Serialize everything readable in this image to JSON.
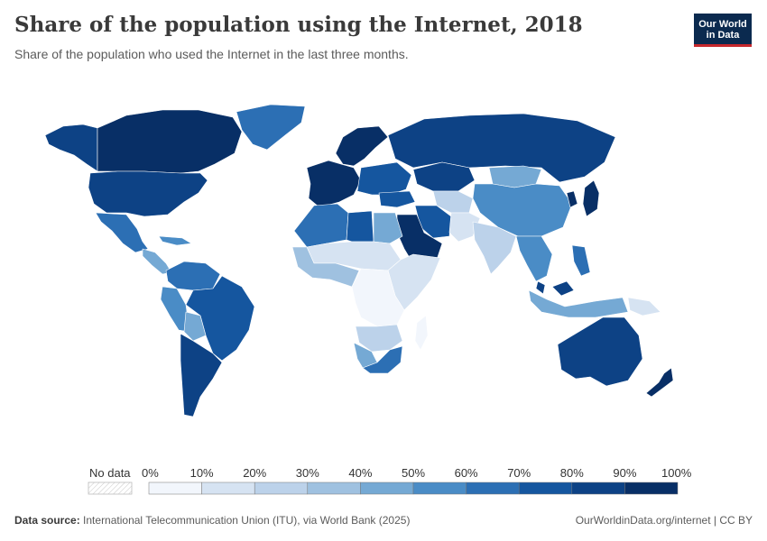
{
  "header": {
    "title": "Share of the population using the Internet, 2018",
    "subtitle": "Share of the population who used the Internet in the last three months.",
    "logo_line1": "Our World",
    "logo_line2": "in Data"
  },
  "legend": {
    "no_data_label": "No data",
    "ticks": [
      "0%",
      "10%",
      "20%",
      "30%",
      "40%",
      "50%",
      "60%",
      "70%",
      "80%",
      "90%",
      "100%"
    ],
    "bins": [
      {
        "range": "0-10",
        "color": "#f2f6fc"
      },
      {
        "range": "10-20",
        "color": "#d6e3f2"
      },
      {
        "range": "20-30",
        "color": "#bcd2ea"
      },
      {
        "range": "30-40",
        "color": "#9fc1e0"
      },
      {
        "range": "40-50",
        "color": "#75a9d4"
      },
      {
        "range": "50-60",
        "color": "#4a8cc6"
      },
      {
        "range": "60-70",
        "color": "#2c6fb4"
      },
      {
        "range": "70-80",
        "color": "#15569f"
      },
      {
        "range": "80-90",
        "color": "#0d4285"
      },
      {
        "range": "90-100",
        "color": "#082f66"
      }
    ]
  },
  "regions": [
    {
      "name": "canada",
      "value": 91
    },
    {
      "name": "alaska",
      "value": 87
    },
    {
      "name": "greenland",
      "value": 69
    },
    {
      "name": "united-states",
      "value": 88
    },
    {
      "name": "mexico",
      "value": 66
    },
    {
      "name": "central-america",
      "value": 45
    },
    {
      "name": "caribbean",
      "value": 55
    },
    {
      "name": "colombia-venezuela",
      "value": 68
    },
    {
      "name": "peru",
      "value": 53
    },
    {
      "name": "brazil",
      "value": 70
    },
    {
      "name": "bolivia",
      "value": 44
    },
    {
      "name": "chile-argentina",
      "value": 80
    },
    {
      "name": "iceland-nordics",
      "value": 97
    },
    {
      "name": "western-europe",
      "value": 90
    },
    {
      "name": "eastern-europe",
      "value": 78
    },
    {
      "name": "russia",
      "value": 81
    },
    {
      "name": "kazakhstan",
      "value": 81
    },
    {
      "name": "central-asia",
      "value": 25
    },
    {
      "name": "mongolia",
      "value": 40
    },
    {
      "name": "china",
      "value": 59
    },
    {
      "name": "japan",
      "value": 91
    },
    {
      "name": "korea",
      "value": 96
    },
    {
      "name": "turkey",
      "value": 71
    },
    {
      "name": "iran",
      "value": 70
    },
    {
      "name": "saudi-arabia",
      "value": 93
    },
    {
      "name": "afghanistan-pakistan",
      "value": 12
    },
    {
      "name": "india",
      "value": 20
    },
    {
      "name": "southeast-asia",
      "value": 55
    },
    {
      "name": "malaysia",
      "value": 81
    },
    {
      "name": "indonesia",
      "value": 40
    },
    {
      "name": "philippines",
      "value": 60
    },
    {
      "name": "papua-new-guinea",
      "value": 11
    },
    {
      "name": "north-africa-west",
      "value": 60
    },
    {
      "name": "libya",
      "value": 75
    },
    {
      "name": "egypt",
      "value": 47
    },
    {
      "name": "sahel",
      "value": 15
    },
    {
      "name": "west-africa",
      "value": 30
    },
    {
      "name": "central-africa",
      "value": 8
    },
    {
      "name": "east-africa",
      "value": 18
    },
    {
      "name": "southern-africa-mid",
      "value": 25
    },
    {
      "name": "namibia-botswana",
      "value": 47
    },
    {
      "name": "south-africa",
      "value": 62
    },
    {
      "name": "madagascar",
      "value": 9
    },
    {
      "name": "australia",
      "value": 87
    },
    {
      "name": "new-zealand",
      "value": 91
    }
  ],
  "footer": {
    "source_label": "Data source:",
    "source_text": "International Telecommunication Union (ITU), via World Bank (2025)",
    "right_text": "OurWorldinData.org/internet | CC BY"
  }
}
